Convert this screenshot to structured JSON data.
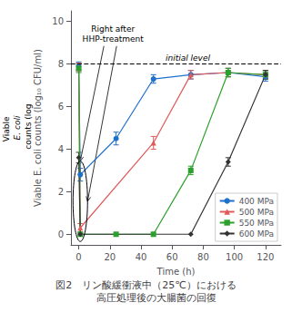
{
  "chart_data": {
    "type": "line",
    "title": "図2　リン酸緩衝液中（25℃）における\n　　高圧処理後の大腸菌の回復",
    "xlabel": "Time (h)",
    "ylabel": "Viable E. coli counts (log₁₀ CFU/ml)",
    "xlim": [
      -5,
      130
    ],
    "ylim": [
      -0.5,
      10.5
    ],
    "xticks": [
      0,
      20,
      40,
      60,
      80,
      100,
      120
    ],
    "yticks": [
      0,
      2,
      4,
      6,
      8,
      10
    ],
    "grid": false,
    "legend": "lower right",
    "initial_level": 8.0,
    "annotations": [
      "initial level",
      "Right after\nHHP-treatment",
      "Viable ",
      "E. coli",
      " counts (log"
    ],
    "series": [
      {
        "name": "400 MPa",
        "color": "#1f6fcc",
        "marker": "circle",
        "x": [
          0,
          1,
          24,
          48,
          72,
          96,
          120
        ],
        "values": [
          7.9,
          2.8,
          4.5,
          7.3,
          7.5,
          7.6,
          7.4
        ],
        "yerr": [
          0.2,
          0.3,
          0.3,
          0.2,
          0.2,
          0.2,
          0.2
        ]
      },
      {
        "name": "500 MPa",
        "color": "#e05a5a",
        "marker": "triangle",
        "x": [
          0,
          1,
          48,
          72,
          96,
          120
        ],
        "values": [
          7.85,
          0.3,
          4.3,
          7.5,
          7.6,
          7.5
        ],
        "yerr": [
          0.2,
          0.2,
          0.3,
          0.2,
          0.2,
          0.2
        ]
      },
      {
        "name": "550 MPa",
        "color": "#2ca02c",
        "marker": "square",
        "x": [
          0,
          1,
          24,
          48,
          72,
          96,
          120
        ],
        "values": [
          7.8,
          0.0,
          0.0,
          0.0,
          3.0,
          7.6,
          7.5
        ],
        "yerr": [
          0.2,
          0.0,
          0.0,
          0.0,
          0.2,
          0.2,
          0.2
        ]
      },
      {
        "name": "600 MPa",
        "color": "#333333",
        "marker": "diamond",
        "x": [
          0,
          1,
          72,
          96,
          120
        ],
        "values": [
          3.6,
          0.0,
          0.0,
          3.4,
          7.5
        ],
        "yerr": [
          0.25,
          0.0,
          0.0,
          0.2,
          0.2
        ]
      }
    ]
  }
}
